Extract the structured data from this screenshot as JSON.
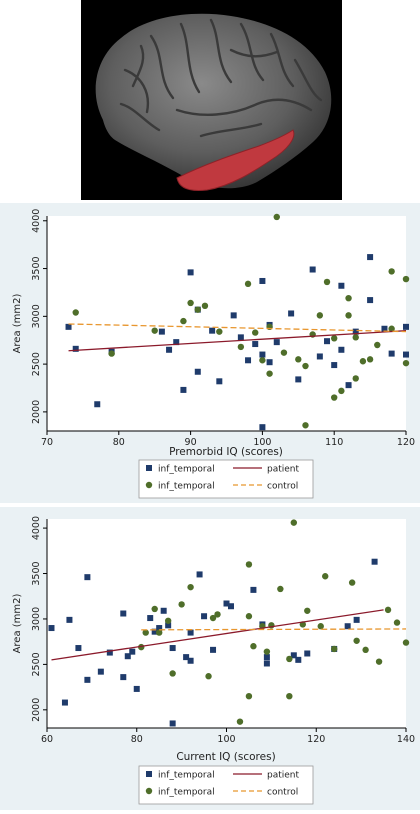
{
  "colors": {
    "patient_marker": "#1f3b6b",
    "control_marker": "#4f6e2a",
    "patient_line": "#8b1a2b",
    "control_line": "#e8962e",
    "panel_background": "#eaf1f4",
    "plot_background": "#ffffff",
    "brain_background": "#000000",
    "brain_highlight": "#c0393f"
  },
  "chart_data": [
    {
      "type": "scatter",
      "xlabel": "Premorbid IQ (scores)",
      "ylabel": "Area (mm2)",
      "xlim": [
        70,
        120
      ],
      "ylim": [
        1800,
        4050
      ],
      "xticks": [
        "70",
        "80",
        "90",
        "100",
        "110",
        "120"
      ],
      "yticks": [
        "2000",
        "2500",
        "3000",
        "3500",
        "4000"
      ],
      "grid": false,
      "legend_position": "bottom",
      "legend": [
        {
          "label": "inf_temporal",
          "kind": "square",
          "color": "#1f3b6b"
        },
        {
          "label": "patient",
          "kind": "solid-line",
          "color": "#8b1a2b"
        },
        {
          "label": "inf_temporal",
          "kind": "circle",
          "color": "#4f6e2a"
        },
        {
          "label": "control",
          "kind": "dashed-line",
          "color": "#e8962e"
        }
      ],
      "series": [
        {
          "group": "patient",
          "marker": "square",
          "points": [
            [
              73,
              2890
            ],
            [
              74,
              2660
            ],
            [
              77,
              2080
            ],
            [
              79,
              2630
            ],
            [
              86,
              2840
            ],
            [
              87,
              2650
            ],
            [
              88,
              2730
            ],
            [
              89,
              2230
            ],
            [
              90,
              3460
            ],
            [
              91,
              3070
            ],
            [
              91,
              2420
            ],
            [
              93,
              2850
            ],
            [
              94,
              2320
            ],
            [
              96,
              3010
            ],
            [
              97,
              2780
            ],
            [
              98,
              2540
            ],
            [
              99,
              2710
            ],
            [
              100,
              1840
            ],
            [
              100,
              2600
            ],
            [
              100,
              3370
            ],
            [
              101,
              2910
            ],
            [
              101,
              2520
            ],
            [
              102,
              2730
            ],
            [
              104,
              3030
            ],
            [
              105,
              2340
            ],
            [
              107,
              3490
            ],
            [
              108,
              2580
            ],
            [
              109,
              2740
            ],
            [
              110,
              2490
            ],
            [
              111,
              3320
            ],
            [
              111,
              2650
            ],
            [
              112,
              2280
            ],
            [
              113,
              2840
            ],
            [
              115,
              3620
            ],
            [
              115,
              3170
            ],
            [
              117,
              2870
            ],
            [
              118,
              2610
            ],
            [
              120,
              2890
            ],
            [
              120,
              2600
            ]
          ]
        },
        {
          "group": "control",
          "marker": "circle",
          "points": [
            [
              74,
              3040
            ],
            [
              79,
              2610
            ],
            [
              85,
              2850
            ],
            [
              89,
              2950
            ],
            [
              90,
              3140
            ],
            [
              91,
              3070
            ],
            [
              92,
              3110
            ],
            [
              94,
              2840
            ],
            [
              97,
              2680
            ],
            [
              98,
              3340
            ],
            [
              99,
              2830
            ],
            [
              100,
              2540
            ],
            [
              101,
              2890
            ],
            [
              101,
              2400
            ],
            [
              102,
              4040
            ],
            [
              103,
              2620
            ],
            [
              105,
              2550
            ],
            [
              106,
              1860
            ],
            [
              106,
              2480
            ],
            [
              107,
              2810
            ],
            [
              108,
              3010
            ],
            [
              109,
              3360
            ],
            [
              110,
              2770
            ],
            [
              110,
              2150
            ],
            [
              111,
              2220
            ],
            [
              112,
              3010
            ],
            [
              112,
              3190
            ],
            [
              113,
              2780
            ],
            [
              113,
              2350
            ],
            [
              114,
              2530
            ],
            [
              115,
              2550
            ],
            [
              116,
              2700
            ],
            [
              118,
              3470
            ],
            [
              118,
              2870
            ],
            [
              120,
              3390
            ],
            [
              120,
              2510
            ]
          ]
        }
      ],
      "fit_lines": [
        {
          "group": "patient",
          "style": "solid",
          "x": [
            73,
            120
          ],
          "y": [
            2640,
            2850
          ]
        },
        {
          "group": "control",
          "style": "dashed",
          "x": [
            73,
            120
          ],
          "y": [
            2920,
            2840
          ]
        }
      ]
    },
    {
      "type": "scatter",
      "xlabel": "Current IQ (scores)",
      "ylabel": "Area (mm2)",
      "xlim": [
        60,
        140
      ],
      "ylim": [
        1800,
        4100
      ],
      "xticks": [
        "60",
        "80",
        "100",
        "120",
        "140"
      ],
      "yticks": [
        "2000",
        "2500",
        "3000",
        "3500",
        "4000"
      ],
      "grid": false,
      "legend_position": "bottom",
      "legend": [
        {
          "label": "inf_temporal",
          "kind": "square",
          "color": "#1f3b6b"
        },
        {
          "label": "patient",
          "kind": "solid-line",
          "color": "#8b1a2b"
        },
        {
          "label": "inf_temporal",
          "kind": "circle",
          "color": "#4f6e2a"
        },
        {
          "label": "control",
          "kind": "dashed-line",
          "color": "#e8962e"
        }
      ],
      "series": [
        {
          "group": "patient",
          "marker": "square",
          "points": [
            [
              61,
              2900
            ],
            [
              64,
              2080
            ],
            [
              65,
              2990
            ],
            [
              67,
              2680
            ],
            [
              69,
              3460
            ],
            [
              69,
              2330
            ],
            [
              72,
              2420
            ],
            [
              74,
              2630
            ],
            [
              77,
              2360
            ],
            [
              77,
              3060
            ],
            [
              78,
              2590
            ],
            [
              79,
              2640
            ],
            [
              80,
              2230
            ],
            [
              83,
              3010
            ],
            [
              84,
              2860
            ],
            [
              85,
              2900
            ],
            [
              86,
              3090
            ],
            [
              87,
              2930
            ],
            [
              88,
              1850
            ],
            [
              88,
              2680
            ],
            [
              91,
              2580
            ],
            [
              92,
              2850
            ],
            [
              92,
              2540
            ],
            [
              94,
              3490
            ],
            [
              95,
              3030
            ],
            [
              97,
              2660
            ],
            [
              100,
              3170
            ],
            [
              101,
              3140
            ],
            [
              106,
              3320
            ],
            [
              108,
              2940
            ],
            [
              109,
              2580
            ],
            [
              109,
              2510
            ],
            [
              115,
              2600
            ],
            [
              116,
              2550
            ],
            [
              118,
              2620
            ],
            [
              124,
              2670
            ],
            [
              127,
              2920
            ],
            [
              129,
              2990
            ],
            [
              133,
              3630
            ]
          ]
        },
        {
          "group": "control",
          "marker": "circle",
          "points": [
            [
              81,
              2690
            ],
            [
              82,
              2850
            ],
            [
              84,
              3110
            ],
            [
              85,
              2850
            ],
            [
              87,
              2980
            ],
            [
              88,
              2400
            ],
            [
              90,
              3160
            ],
            [
              92,
              3350
            ],
            [
              96,
              2370
            ],
            [
              97,
              3010
            ],
            [
              98,
              3050
            ],
            [
              103,
              1870
            ],
            [
              105,
              3600
            ],
            [
              105,
              3030
            ],
            [
              105,
              2150
            ],
            [
              106,
              2700
            ],
            [
              108,
              2920
            ],
            [
              109,
              2640
            ],
            [
              110,
              2930
            ],
            [
              112,
              3330
            ],
            [
              114,
              2150
            ],
            [
              114,
              2560
            ],
            [
              115,
              4060
            ],
            [
              117,
              2940
            ],
            [
              118,
              3090
            ],
            [
              121,
              2920
            ],
            [
              122,
              3470
            ],
            [
              124,
              2670
            ],
            [
              128,
              3400
            ],
            [
              129,
              2760
            ],
            [
              131,
              2660
            ],
            [
              134,
              2530
            ],
            [
              136,
              3100
            ],
            [
              138,
              2960
            ],
            [
              140,
              2740
            ]
          ]
        }
      ],
      "fit_lines": [
        {
          "group": "patient",
          "style": "solid",
          "x": [
            61,
            135
          ],
          "y": [
            2550,
            3100
          ]
        },
        {
          "group": "control",
          "style": "dashed",
          "x": [
            81,
            140
          ],
          "y": [
            2880,
            2890
          ]
        }
      ]
    }
  ]
}
